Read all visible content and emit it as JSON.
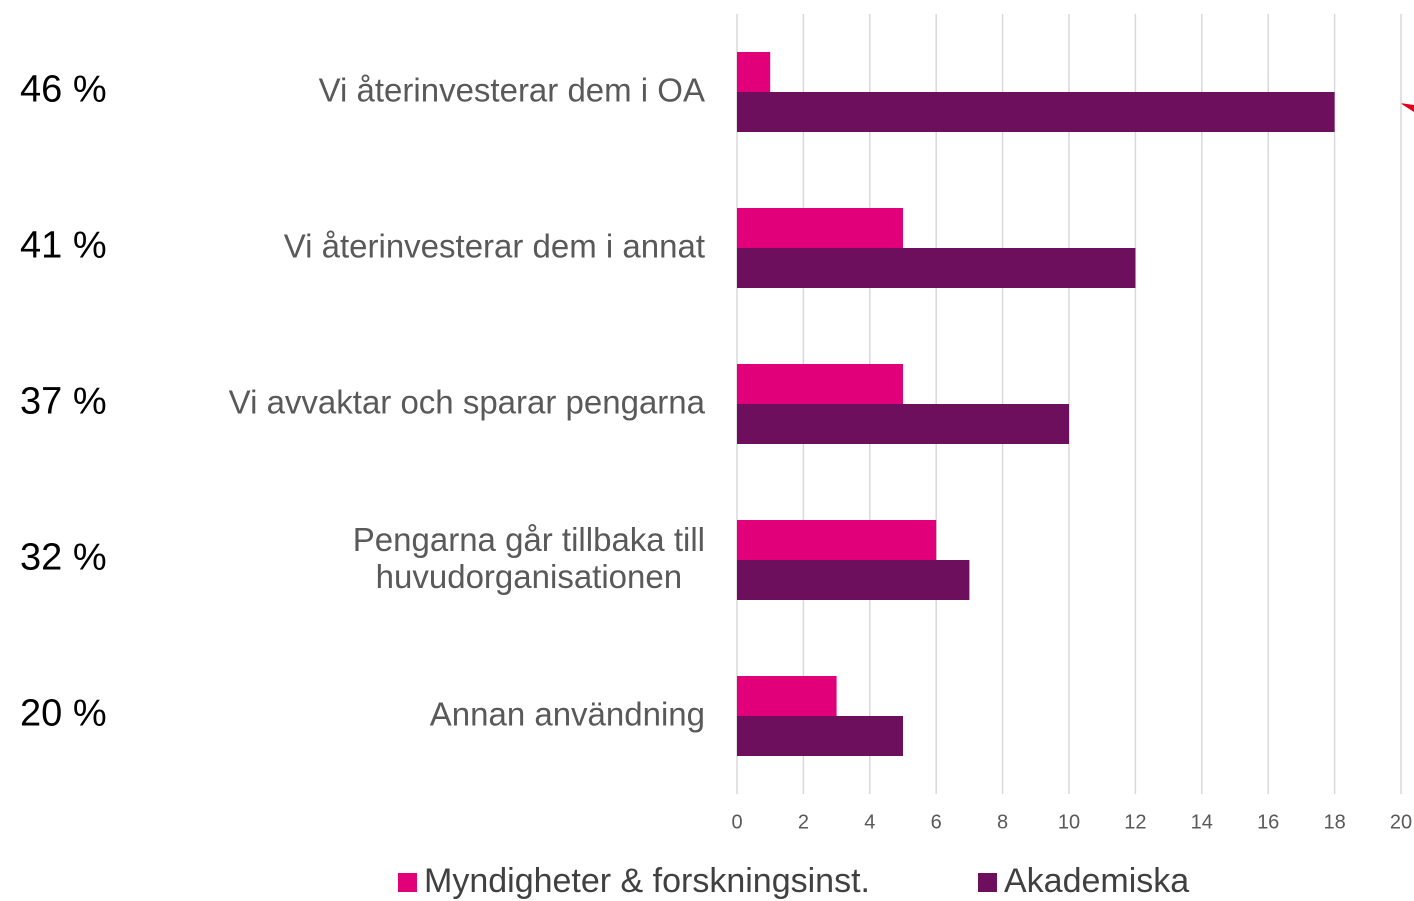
{
  "chart_data": {
    "type": "barh",
    "categories": [
      "Vi återinvesterar dem i OA",
      "Vi återinvesterar dem i annat",
      "Vi avvaktar och sparar pengarna",
      "Pengarna går tillbaka till\nhuvudorganisationen",
      "Annan användning"
    ],
    "side_labels": [
      "46 %",
      "41 %",
      "37 %",
      "32 %",
      "20 %"
    ],
    "series": [
      {
        "name": "Myndigheter & forskningsinst.",
        "color": "#e2007a",
        "values": [
          1,
          5,
          5,
          6,
          3
        ]
      },
      {
        "name": "Akademiska",
        "color": "#6d0f5c",
        "values": [
          18,
          12,
          10,
          7,
          5
        ]
      }
    ],
    "xlim": [
      0,
      20
    ],
    "xticks": [
      0,
      2,
      4,
      6,
      8,
      10,
      12,
      14,
      16,
      18,
      20
    ],
    "grid": true,
    "legend": "bottom"
  }
}
